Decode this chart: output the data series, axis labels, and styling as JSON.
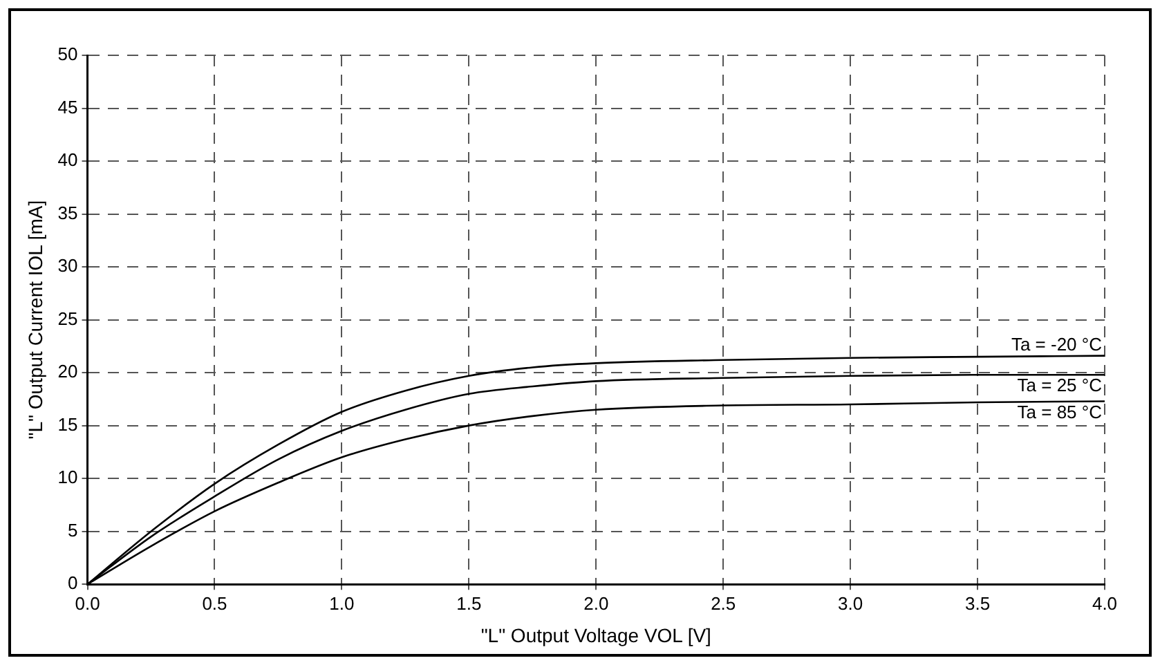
{
  "chart_data": {
    "type": "line",
    "xlabel": "\"L\" Output Voltage VOL [V]",
    "ylabel": "\"L\" Output Current IOL [mA]",
    "x": [
      0,
      0.25,
      0.5,
      0.75,
      1.0,
      1.25,
      1.5,
      1.75,
      2.0,
      2.5,
      3.0,
      3.5,
      4.0
    ],
    "series": [
      {
        "name": "Ta = -20 °C",
        "color": "#000000",
        "values": [
          0,
          5.0,
          9.5,
          13.2,
          16.3,
          18.3,
          19.7,
          20.5,
          20.9,
          21.2,
          21.4,
          21.5,
          21.6
        ]
      },
      {
        "name": "Ta = 25 °C",
        "color": "#000000",
        "values": [
          0,
          4.5,
          8.3,
          11.8,
          14.5,
          16.5,
          18.0,
          18.7,
          19.2,
          19.5,
          19.7,
          19.8,
          19.8
        ]
      },
      {
        "name": "Ta = 85 °C",
        "color": "#000000",
        "values": [
          0,
          3.6,
          6.9,
          9.6,
          12.0,
          13.7,
          15.0,
          15.9,
          16.5,
          16.9,
          17.0,
          17.2,
          17.3
        ]
      }
    ],
    "xlim": [
      0,
      4
    ],
    "xticks": [
      {
        "value": 0,
        "label": "0.0"
      },
      {
        "value": 0.5,
        "label": "0.5"
      },
      {
        "value": 1,
        "label": "1.0"
      },
      {
        "value": 1.5,
        "label": "1.5"
      },
      {
        "value": 2,
        "label": "2.0"
      },
      {
        "value": 2.5,
        "label": "2.5"
      },
      {
        "value": 3,
        "label": "3.0"
      },
      {
        "value": 3.5,
        "label": "3.5"
      },
      {
        "value": 4,
        "label": "4.0"
      }
    ],
    "ylim": [
      0,
      50
    ],
    "yticks": [
      0,
      5,
      10,
      15,
      20,
      25,
      30,
      35,
      40,
      45,
      50
    ],
    "grid": true,
    "legend": false,
    "marker": "none",
    "line_style": "solid"
  }
}
